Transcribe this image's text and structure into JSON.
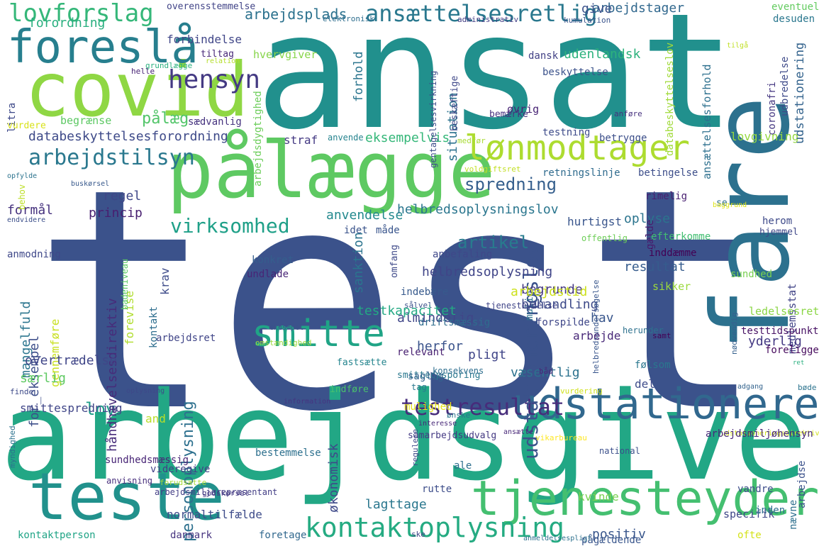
{
  "words": [
    {
      "text": "test",
      "color": "#3b528b"
    },
    {
      "text": "ansat",
      "color": "#21908d"
    },
    {
      "text": "arbejdsgiver",
      "color": "#22a785"
    },
    {
      "text": "covid",
      "color": "#8fd744"
    },
    {
      "text": "pålægge",
      "color": "#5ec962"
    },
    {
      "text": "fare",
      "color": "#2c718e"
    },
    {
      "text": "teste",
      "color": "#21918c"
    },
    {
      "text": "tjenesteyder",
      "color": "#44bf70"
    },
    {
      "text": "udstationere",
      "color": "#31688e"
    },
    {
      "text": "smitte",
      "color": "#20a486"
    },
    {
      "text": "foreslå",
      "color": "#277f8e"
    },
    {
      "text": "lønmodtager",
      "color": "#addc30"
    },
    {
      "text": "lovforslag",
      "color": "#35b779"
    },
    {
      "text": "ansættelsesretlig",
      "color": "#2a788e"
    },
    {
      "text": "hensyn",
      "color": "#443a83"
    },
    {
      "text": "kontaktoplysning",
      "color": "#25ab82"
    },
    {
      "text": "testresultat",
      "color": "#472d7b"
    },
    {
      "text": "udstationeringslov",
      "color": "#3b528b"
    },
    {
      "text": "arbejdstilsyn",
      "color": "#2a788e"
    },
    {
      "text": "virksomhed",
      "color": "#1fa088"
    },
    {
      "text": "spredning",
      "color": "#355f8d"
    },
    {
      "text": "personoplysning",
      "color": "#2d708e"
    },
    {
      "text": "artikel",
      "color": "#287c8e"
    },
    {
      "text": "databeskyttelsesforordning",
      "color": "#3e4a89"
    },
    {
      "text": "pålæg",
      "color": "#52c569"
    },
    {
      "text": "lov",
      "color": "#1f9e89"
    },
    {
      "text": "arbejdsplads",
      "color": "#2c728e"
    },
    {
      "text": "arbejdstager",
      "color": "#31688e"
    },
    {
      "text": "forordning",
      "color": "#29af7f"
    },
    {
      "text": "udenlandsk",
      "color": "#2db27d"
    },
    {
      "text": "forbindelse",
      "color": "#404688"
    },
    {
      "text": "tiltag",
      "color": "#482878"
    },
    {
      "text": "hvervgiver",
      "color": "#86d549"
    },
    {
      "text": "give",
      "color": "#3b528b"
    },
    {
      "text": "overensstemmelse",
      "color": "#414487"
    },
    {
      "text": "elektronisk",
      "color": "#2e6e8e"
    },
    {
      "text": "administrativ",
      "color": "#433e85"
    },
    {
      "text": "kumulation",
      "color": "#3a548c"
    },
    {
      "text": "eventuel",
      "color": "#63cb5f"
    },
    {
      "text": "desuden",
      "color": "#2a778e"
    },
    {
      "text": "grundlægge",
      "color": "#2ab07f"
    },
    {
      "text": "relation",
      "color": "#b5de2b"
    },
    {
      "text": "helle",
      "color": "#482475"
    },
    {
      "text": "litra",
      "color": "#3e4989"
    },
    {
      "text": "vurdere",
      "color": "#d8e219"
    },
    {
      "text": "begrænse",
      "color": "#5cc863"
    },
    {
      "text": "sædvanlig",
      "color": "#46337f"
    },
    {
      "text": "straf",
      "color": "#443983"
    },
    {
      "text": "eksempelvis",
      "color": "#35b779"
    },
    {
      "text": "regel",
      "color": "#3f4788"
    },
    {
      "text": "princip",
      "color": "#481f70"
    },
    {
      "text": "formål",
      "color": "#46327e"
    },
    {
      "text": "anmodning",
      "color": "#3f4889"
    },
    {
      "text": "opfylde",
      "color": "#2c738e"
    },
    {
      "text": "behov",
      "color": "#bddf26"
    },
    {
      "text": "buskørsel",
      "color": "#38598c"
    },
    {
      "text": "endvidere",
      "color": "#3c4f8a"
    },
    {
      "text": "anvendelse",
      "color": "#23898e"
    },
    {
      "text": "helbredsoplysningslov",
      "color": "#2a768e"
    },
    {
      "text": "situation",
      "color": "#2c728e"
    },
    {
      "text": "forhold",
      "color": "#2b758e"
    },
    {
      "text": "arbejdsdygtighed",
      "color": "#6ccd5a"
    },
    {
      "text": "gentagelsesvirkning",
      "color": "#3d4d8a"
    },
    {
      "text": "beskæftige",
      "color": "#3f4889"
    },
    {
      "text": "dansk",
      "color": "#424186"
    },
    {
      "text": "beskyttelse",
      "color": "#3b528b"
    },
    {
      "text": "øvrig",
      "color": "#482475"
    },
    {
      "text": "bemærke",
      "color": "#46307e"
    },
    {
      "text": "anvende",
      "color": "#25838e"
    },
    {
      "text": "medfør",
      "color": "#a8db34"
    },
    {
      "text": "voldgiftsret",
      "color": "#c2df23"
    },
    {
      "text": "testning",
      "color": "#3e4c8a"
    },
    {
      "text": "betrygge",
      "color": "#3c4f8a"
    },
    {
      "text": "lovgivning",
      "color": "#95d840"
    },
    {
      "text": "retningslinje",
      "color": "#2f6b8e"
    },
    {
      "text": "betingelse",
      "color": "#3d4e8a"
    },
    {
      "text": "rimelig",
      "color": "#482071"
    },
    {
      "text": "herom",
      "color": "#3e4a89"
    },
    {
      "text": "databeskyttelseslov",
      "color": "#a0da39"
    },
    {
      "text": "ansættelsesforhold",
      "color": "#2d708e"
    },
    {
      "text": "udstationering",
      "color": "#33638d"
    },
    {
      "text": "anføre",
      "color": "#46317e"
    },
    {
      "text": "coronafri",
      "color": "#453781"
    },
    {
      "text": "udbredelse",
      "color": "#3e4a89"
    },
    {
      "text": "tilgå",
      "color": "#c0df25"
    },
    {
      "text": "oplyse",
      "color": "#2b748e"
    },
    {
      "text": "gælde",
      "color": "#481b6d"
    },
    {
      "text": "resultat",
      "color": "#365c8d"
    },
    {
      "text": "hurtigst",
      "color": "#39558c"
    },
    {
      "text": "efterkomme",
      "color": "#42be71"
    },
    {
      "text": "se",
      "color": "#2e6f8e"
    },
    {
      "text": "hjemmel",
      "color": "#3f4788"
    },
    {
      "text": "offentlig",
      "color": "#6ece58"
    },
    {
      "text": "baggrund",
      "color": "#dde318"
    },
    {
      "text": "inddæmme",
      "color": "#440154"
    },
    {
      "text": "idet",
      "color": "#3a538b"
    },
    {
      "text": "måde",
      "color": "#39558c"
    },
    {
      "text": "sanktion",
      "color": "#2b748e"
    },
    {
      "text": "omfang",
      "color": "#3e4989"
    },
    {
      "text": "konkret",
      "color": "#355e8d"
    },
    {
      "text": "undlade",
      "color": "#482576"
    },
    {
      "text": "anbefaling",
      "color": "#3f4889"
    },
    {
      "text": "mulig",
      "color": "#2d718e"
    },
    {
      "text": "almindelig",
      "color": "#404688"
    },
    {
      "text": "helbredsoplysning",
      "color": "#404588"
    },
    {
      "text": "begrunde",
      "color": "#453882"
    },
    {
      "text": "behandling",
      "color": "#3e4a89"
    },
    {
      "text": "arbejdstid",
      "color": "#cde11d"
    },
    {
      "text": "sundhed",
      "color": "#7ad151"
    },
    {
      "text": "sikker",
      "color": "#9bd93c"
    },
    {
      "text": "indebære",
      "color": "#375a8c"
    },
    {
      "text": "sålvel",
      "color": "#3b518b"
    },
    {
      "text": "tjenesteydelse",
      "color": "#404588"
    },
    {
      "text": "helbredsundersøgelse",
      "color": "#39568c"
    },
    {
      "text": "medlemsstat",
      "color": "#414487"
    },
    {
      "text": "ledelsesret",
      "color": "#8bd646"
    },
    {
      "text": "testtidspunkt",
      "color": "#471164"
    },
    {
      "text": "yderlig",
      "color": "#443983"
    },
    {
      "text": "samt",
      "color": "#440154"
    },
    {
      "text": "herunder",
      "color": "#2d718e"
    },
    {
      "text": "ret",
      "color": "#29af7f"
    },
    {
      "text": "hav",
      "color": "#39568c"
    },
    {
      "text": "arbejde",
      "color": "#482878"
    },
    {
      "text": "forspilde",
      "color": "#3f4788"
    },
    {
      "text": "testkapacitet",
      "color": "#23a983"
    },
    {
      "text": "driftsmæssig",
      "color": "#2f6c8e"
    },
    {
      "text": "mangelfuld",
      "color": "#2b758e"
    },
    {
      "text": "for_eksempel",
      "color": "#3d4e8a"
    },
    {
      "text": "gennemføre",
      "color": "#c8e020"
    },
    {
      "text": "håndhævelsesdirektiv",
      "color": "#472c7a"
    },
    {
      "text": "forevise",
      "color": "#b0dd2f"
    },
    {
      "text": "krav",
      "color": "#3e4c8a"
    },
    {
      "text": "kontakt",
      "color": "#2e6e8e"
    },
    {
      "text": "arbejdsret",
      "color": "#404588"
    },
    {
      "text": "badeniveau",
      "color": "#5ac864"
    },
    {
      "text": "ekesmpel",
      "color": "#3b528b"
    },
    {
      "text": "tag",
      "color": "#2a788e"
    },
    {
      "text": "omstændighed",
      "color": "#9dd93b"
    },
    {
      "text": "nødvendig",
      "color": "#35608d"
    },
    {
      "text": "relevant",
      "color": "#482071"
    },
    {
      "text": "smitteopsporing",
      "color": "#2a788e"
    },
    {
      "text": "fastsætte",
      "color": "#25858e"
    },
    {
      "text": "pligt",
      "color": "#404588"
    },
    {
      "text": "herfor",
      "color": "#3a538b"
    },
    {
      "text": "følsom",
      "color": "#2a778e"
    },
    {
      "text": "foreligge",
      "color": "#460a5d"
    },
    {
      "text": "overtrædelse",
      "color": "#404688"
    },
    {
      "text": "saglig",
      "color": "#33638d"
    },
    {
      "text": "væsentlig",
      "color": "#2c728e"
    },
    {
      "text": "del",
      "color": "#3e4c8a"
    },
    {
      "text": "særlig",
      "color": "#5ec962"
    },
    {
      "text": "finde",
      "color": "#3e4a89"
    },
    {
      "text": "indføre",
      "color": "#4ac16d"
    },
    {
      "text": "mulighed",
      "color": "#e7e419"
    },
    {
      "text": "båd",
      "color": "#482878"
    },
    {
      "text": "vurdering",
      "color": "#d0e11c"
    },
    {
      "text": "adgang",
      "color": "#33638d"
    },
    {
      "text": "oplysning",
      "color": "#3e4989"
    },
    {
      "text": "smittespredning",
      "color": "#404688"
    },
    {
      "text": "konsekvens",
      "color": "#2e6e8e"
    },
    {
      "text": "økonomisk",
      "color": "#3e4989"
    },
    {
      "text": "and",
      "color": "#b8de29"
    },
    {
      "text": "samarbejdsudvalg",
      "color": "#443983"
    },
    {
      "text": "information",
      "color": "#453581"
    },
    {
      "text": "interesse",
      "color": "#482878"
    },
    {
      "text": "ønske",
      "color": "#2a768e"
    },
    {
      "text": "vikarbureau",
      "color": "#fde725"
    },
    {
      "text": "udstationeringsdirektiv",
      "color": "#d2e21b"
    },
    {
      "text": "arbejdsmiljøhensyn",
      "color": "#482878"
    },
    {
      "text": "bøde",
      "color": "#2c738e"
    },
    {
      "text": "myndighed",
      "color": "#2c728e"
    },
    {
      "text": "kontaktperson",
      "color": "#20a486"
    },
    {
      "text": "bestemmelse",
      "color": "#2d708e"
    },
    {
      "text": "normaltilfælde",
      "color": "#3e4c8a"
    },
    {
      "text": "lagttage",
      "color": "#2a778e"
    },
    {
      "text": "danmark",
      "color": "#46337f"
    },
    {
      "text": "foretage",
      "color": "#31688e"
    },
    {
      "text": "positiv",
      "color": "#39568c"
    },
    {
      "text": "kvinde",
      "color": "#7ad151"
    },
    {
      "text": "sundhedsmæssig",
      "color": "#482576"
    },
    {
      "text": "videregive",
      "color": "#424086"
    },
    {
      "text": "forudsætte",
      "color": "#a5db36"
    },
    {
      "text": "anvisning",
      "color": "#472e7c"
    },
    {
      "text": "arbejdsmiljørepræsentant",
      "color": "#433e85"
    },
    {
      "text": "godskørsel",
      "color": "#443983"
    },
    {
      "text": "ske",
      "color": "#404688"
    },
    {
      "text": "regulere",
      "color": "#3e4a89"
    },
    {
      "text": "ale",
      "color": "#2e6f8e"
    },
    {
      "text": "national",
      "color": "#3c508b"
    },
    {
      "text": "rutte",
      "color": "#3d4d8a"
    },
    {
      "text": "ansætte",
      "color": "#482878"
    },
    {
      "text": "vandre",
      "color": "#3d4d8a"
    },
    {
      "text": "specifik",
      "color": "#3f4788"
    },
    {
      "text": "inden",
      "color": "#2e6e8e"
    },
    {
      "text": "pågældende",
      "color": "#39568c"
    },
    {
      "text": "anmeldelsespligt",
      "color": "#2d718e"
    },
    {
      "text": "ofte",
      "color": "#d4e21a"
    },
    {
      "text": "nævne",
      "color": "#2e6f8e"
    },
    {
      "text": "arbejdse",
      "color": "#3b518b"
    }
  ]
}
